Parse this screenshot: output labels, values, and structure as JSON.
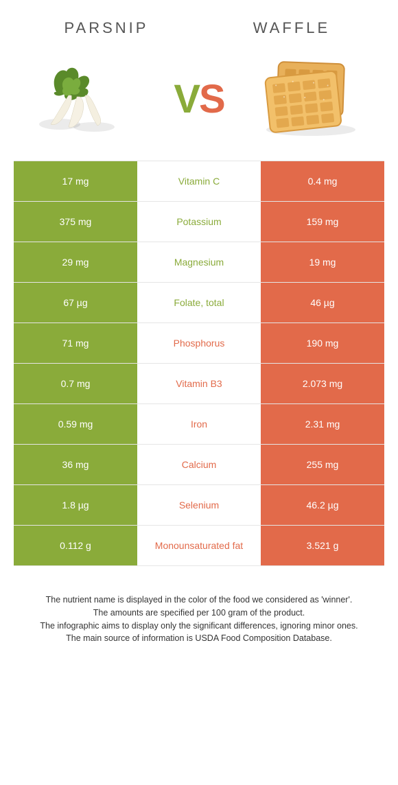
{
  "colors": {
    "left_bg": "#8aab3a",
    "right_bg": "#e26a4a",
    "left_text": "#8aab3a",
    "right_text": "#e26a4a",
    "row_border": "#e5e5e5",
    "title_text": "#555555",
    "footer_text": "#333333"
  },
  "header": {
    "left_title": "Parsnip",
    "right_title": "Waffle",
    "vs_v": "V",
    "vs_s": "S"
  },
  "rows": [
    {
      "left": "17 mg",
      "label": "Vitamin C",
      "right": "0.4 mg",
      "winner": "left"
    },
    {
      "left": "375 mg",
      "label": "Potassium",
      "right": "159 mg",
      "winner": "left"
    },
    {
      "left": "29 mg",
      "label": "Magnesium",
      "right": "19 mg",
      "winner": "left"
    },
    {
      "left": "67 µg",
      "label": "Folate, total",
      "right": "46 µg",
      "winner": "left"
    },
    {
      "left": "71 mg",
      "label": "Phosphorus",
      "right": "190 mg",
      "winner": "right"
    },
    {
      "left": "0.7 mg",
      "label": "Vitamin B3",
      "right": "2.073 mg",
      "winner": "right"
    },
    {
      "left": "0.59 mg",
      "label": "Iron",
      "right": "2.31 mg",
      "winner": "right"
    },
    {
      "left": "36 mg",
      "label": "Calcium",
      "right": "255 mg",
      "winner": "right"
    },
    {
      "left": "1.8 µg",
      "label": "Selenium",
      "right": "46.2 µg",
      "winner": "right"
    },
    {
      "left": "0.112 g",
      "label": "Monounsaturated fat",
      "right": "3.521 g",
      "winner": "right"
    }
  ],
  "footer": {
    "line1": "The nutrient name is displayed in the color of the food we considered as 'winner'.",
    "line2": "The amounts are specified per 100 gram of the product.",
    "line3": "The infographic aims to display only the significant differences, ignoring minor ones.",
    "line4": "The main source of information is USDA Food Composition Database."
  }
}
